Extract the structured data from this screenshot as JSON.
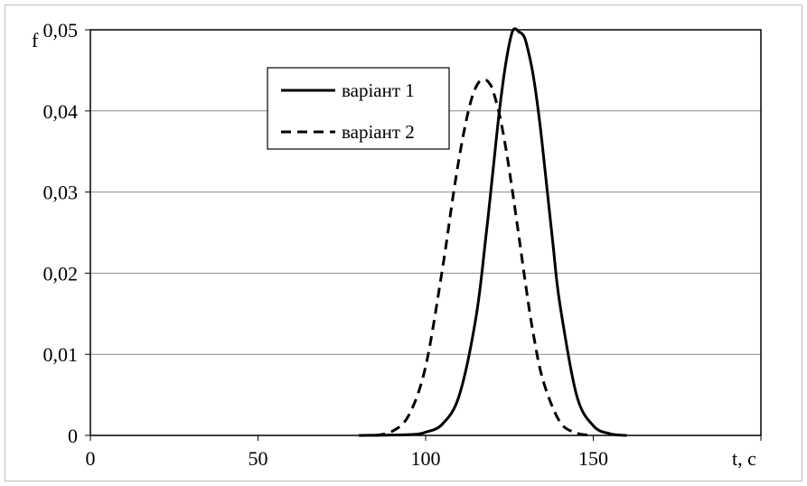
{
  "chart_data": {
    "type": "line",
    "title": "",
    "xlabel": "t, c",
    "ylabel": "f",
    "xlim": [
      0,
      200
    ],
    "ylim": [
      0,
      0.05
    ],
    "x_ticks": [
      "0",
      "50",
      "100",
      "150"
    ],
    "y_ticks": [
      "0",
      "0,01",
      "0,02",
      "0,03",
      "0,04",
      "0,05"
    ],
    "grid": "horizontal",
    "legend_position": "top-left inside",
    "series": [
      {
        "name": "варіант 1",
        "style": "solid",
        "color": "#000000",
        "x": [
          80,
          95,
          100,
          105,
          110,
          115,
          118,
          120,
          122,
          124,
          126,
          128,
          129,
          130,
          132,
          134,
          136,
          138,
          140,
          145,
          150,
          155,
          160
        ],
        "y": [
          0,
          0.0001,
          0.0004,
          0.0014,
          0.0049,
          0.0145,
          0.0246,
          0.0323,
          0.04,
          0.0461,
          0.0499,
          0.0497,
          0.0494,
          0.0484,
          0.0446,
          0.0387,
          0.0312,
          0.0235,
          0.0163,
          0.005,
          0.0012,
          0.0002,
          0
        ]
      },
      {
        "name": "варіант 2",
        "style": "dashed",
        "color": "#000000",
        "x": [
          85,
          90,
          95,
          100,
          105,
          108,
          110,
          112,
          114,
          116,
          118,
          119,
          120,
          122,
          124,
          126,
          128,
          130,
          132,
          135,
          140,
          145,
          150
        ],
        "y": [
          0,
          0.0005,
          0.0025,
          0.0085,
          0.0205,
          0.029,
          0.0342,
          0.0386,
          0.0419,
          0.0436,
          0.0438,
          0.0434,
          0.0426,
          0.0396,
          0.0352,
          0.0298,
          0.024,
          0.0181,
          0.0128,
          0.0068,
          0.0017,
          0.0003,
          0
        ]
      }
    ]
  }
}
